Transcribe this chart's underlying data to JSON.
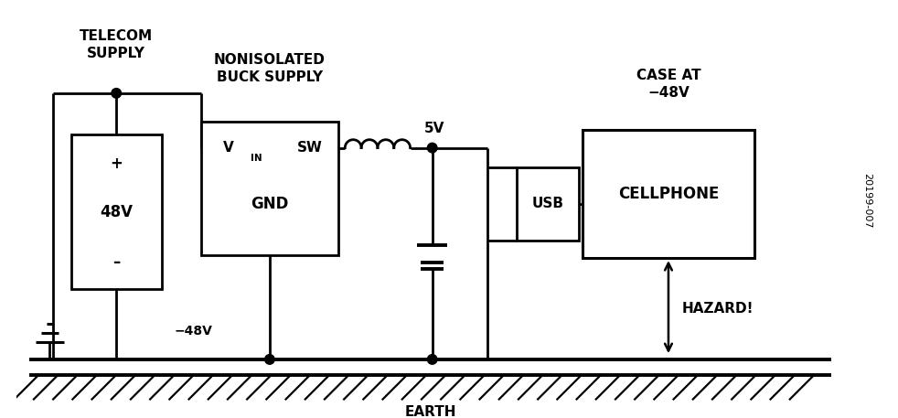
{
  "bg": "#ffffff",
  "lc": "#000000",
  "fw": 9.82,
  "fh": 4.57,
  "labels": {
    "telecom": "TELECOM\nSUPPLY",
    "nonisolated": "NONISOLATED\nBUCK SUPPLY",
    "vin": "V",
    "in_sub": "IN",
    "sw": "SW",
    "gnd": "GND",
    "v5": "5V",
    "plus": "+",
    "v48": "48V",
    "minus": "–",
    "neg48": "−48V",
    "usb": "USB",
    "cellphone": "CELLPHONE",
    "case_at": "CASE AT\n−48V",
    "hazard": "HAZARD!",
    "earth": "EARTH",
    "ref": "20199-007"
  }
}
